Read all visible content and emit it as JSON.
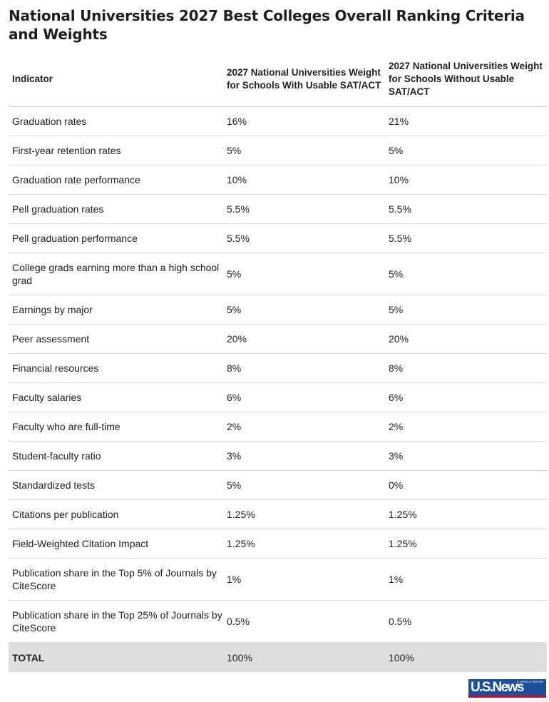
{
  "title": "National Universities 2027 Best Colleges Overall Ranking Criteria and Weights",
  "table": {
    "headers": {
      "indicator": "Indicator",
      "with_sat": "2027 National Universities Weight for Schools With Usable SAT/ACT",
      "without_sat": "2027 National Universities Weight for Schools Without Usable SAT/ACT"
    },
    "rows": [
      {
        "indicator": "Graduation rates",
        "with_sat": "16%",
        "without_sat": "21%"
      },
      {
        "indicator": "First-year retention rates",
        "with_sat": "5%",
        "without_sat": "5%"
      },
      {
        "indicator": "Graduation rate performance",
        "with_sat": "10%",
        "without_sat": "10%"
      },
      {
        "indicator": "Pell graduation rates",
        "with_sat": "5.5%",
        "without_sat": "5.5%"
      },
      {
        "indicator": "Pell graduation performance",
        "with_sat": "5.5%",
        "without_sat": "5.5%"
      },
      {
        "indicator": "College grads earning more than a high school grad",
        "with_sat": "5%",
        "without_sat": "5%"
      },
      {
        "indicator": "Earnings by major",
        "with_sat": "5%",
        "without_sat": "5%"
      },
      {
        "indicator": "Peer assessment",
        "with_sat": "20%",
        "without_sat": "20%"
      },
      {
        "indicator": "Financial resources",
        "with_sat": "8%",
        "without_sat": "8%"
      },
      {
        "indicator": "Faculty salaries",
        "with_sat": "6%",
        "without_sat": "6%"
      },
      {
        "indicator": "Faculty who are full-time",
        "with_sat": "2%",
        "without_sat": "2%"
      },
      {
        "indicator": "Student-faculty ratio",
        "with_sat": "3%",
        "without_sat": "3%"
      },
      {
        "indicator": "Standardized tests",
        "with_sat": "5%",
        "without_sat": "0%"
      },
      {
        "indicator": "Citations per publication",
        "with_sat": "1.25%",
        "without_sat": "1.25%"
      },
      {
        "indicator": "Field-Weighted Citation Impact",
        "with_sat": "1.25%",
        "without_sat": "1.25%"
      },
      {
        "indicator": "Publication share in the Top 5% of Journals by CiteScore",
        "with_sat": "1%",
        "without_sat": "1%"
      },
      {
        "indicator": "Publication share in the Top 25% of Journals by CiteScore",
        "with_sat": "0.5%",
        "without_sat": "0.5%"
      }
    ],
    "total": {
      "indicator": "TOTAL",
      "with_sat": "100%",
      "without_sat": "100%"
    }
  },
  "logo": {
    "text": "U.S.News",
    "small_text": "& WORLD REPORT",
    "brand_blue": "#1b4f9c",
    "brand_red": "#c8102e"
  },
  "colors": {
    "total_row_background": "#dedede",
    "row_divider": "#dcdcdc"
  }
}
